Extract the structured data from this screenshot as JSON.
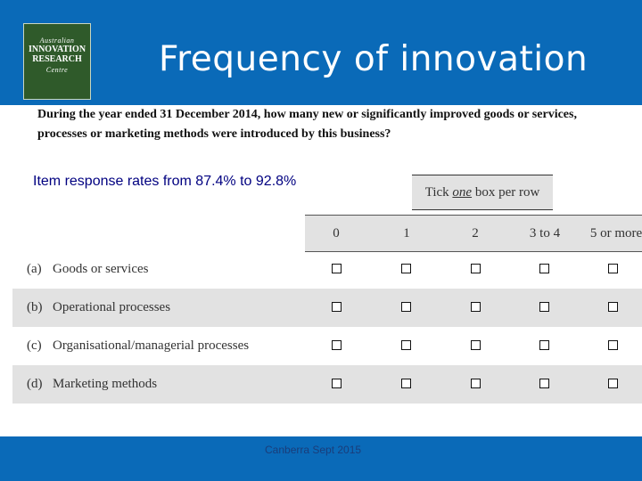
{
  "header": {
    "title": "Frequency of innovation",
    "logo": {
      "line1": "Australian",
      "line2": "INNOVATION",
      "line3": "RESEARCH",
      "line4": "Centre"
    }
  },
  "question": "During the year ended 31 December 2014, how many new or significantly improved goods or services, processes or marketing methods were introduced by this business?",
  "note": "Item response rates from 87.4% to 92.8%",
  "tick_instruction": {
    "pre": "Tick ",
    "emph": "one",
    "post": " box per row"
  },
  "columns": [
    "0",
    "1",
    "2",
    "3 to 4",
    "5 or more"
  ],
  "rows": [
    {
      "letter": "(a)",
      "label": "Goods or services"
    },
    {
      "letter": "(b)",
      "label": "Operational processes"
    },
    {
      "letter": "(c)",
      "label": "Organisational/managerial processes"
    },
    {
      "letter": "(d)",
      "label": "Marketing methods"
    }
  ],
  "footer": "Canberra Sept 2015",
  "colors": {
    "brand_blue": "#0a6ab8",
    "logo_green": "#2f5a2a",
    "note_text": "#000080"
  }
}
